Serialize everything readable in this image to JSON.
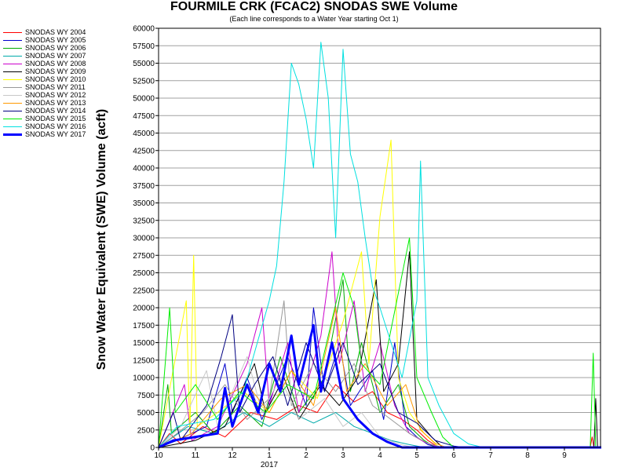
{
  "chart_data": {
    "type": "line",
    "title": "FOURMILE CRK (FCAC2) SNODAS SWE Volume",
    "subtitle": "(Each line corresponds to a Water Year starting Oct 1)",
    "ylabel": "Snow Water Equivalent (SWE) Volume (acft)",
    "xlabel": "",
    "year_label": "2017",
    "ylim": [
      0,
      60000
    ],
    "y_ticks": [
      "0",
      "2500",
      "5000",
      "7500",
      "10000",
      "12500",
      "15000",
      "17500",
      "20000",
      "22500",
      "25000",
      "27500",
      "30000",
      "32500",
      "35000",
      "37500",
      "40000",
      "42500",
      "45000",
      "47500",
      "50000",
      "52500",
      "55000",
      "57500",
      "60000"
    ],
    "x_ticks": [
      {
        "label": "10",
        "month": 0
      },
      {
        "label": "11",
        "month": 1
      },
      {
        "label": "12",
        "month": 2
      },
      {
        "label": "1",
        "month": 3
      },
      {
        "label": "2",
        "month": 4
      },
      {
        "label": "3",
        "month": 5
      },
      {
        "label": "4",
        "month": 6
      },
      {
        "label": "5",
        "month": 7
      },
      {
        "label": "6",
        "month": 8
      },
      {
        "label": "7",
        "month": 9
      },
      {
        "label": "8",
        "month": 10
      },
      {
        "label": "9",
        "month": 11
      }
    ],
    "grid": "horizontal",
    "legend_position": "left",
    "series": [
      {
        "name": "SNODAS WY 2004",
        "color": "#ff0000",
        "points": [
          [
            0,
            0
          ],
          [
            0.3,
            2000
          ],
          [
            0.6,
            500
          ],
          [
            1.2,
            3000
          ],
          [
            1.8,
            1500
          ],
          [
            2.5,
            5000
          ],
          [
            3.2,
            4000
          ],
          [
            3.8,
            6000
          ],
          [
            4.3,
            5000
          ],
          [
            4.8,
            9000
          ],
          [
            5.3,
            6500
          ],
          [
            5.8,
            8000
          ],
          [
            6.2,
            5000
          ],
          [
            6.6,
            4000
          ],
          [
            7.0,
            2500
          ],
          [
            7.3,
            1000
          ],
          [
            7.6,
            0
          ],
          [
            11.7,
            0
          ],
          [
            11.75,
            1500
          ],
          [
            11.8,
            0
          ],
          [
            12,
            0
          ]
        ]
      },
      {
        "name": "SNODAS WY 2005",
        "color": "#0000cc",
        "points": [
          [
            0,
            0
          ],
          [
            0.5,
            1000
          ],
          [
            1.3,
            3000
          ],
          [
            1.8,
            12000
          ],
          [
            2.0,
            5000
          ],
          [
            2.4,
            10000
          ],
          [
            2.8,
            4000
          ],
          [
            3.5,
            13000
          ],
          [
            4.0,
            6000
          ],
          [
            4.2,
            20000
          ],
          [
            4.5,
            8000
          ],
          [
            4.9,
            15000
          ],
          [
            5.2,
            6000
          ],
          [
            5.8,
            11000
          ],
          [
            6.1,
            4000
          ],
          [
            6.4,
            15000
          ],
          [
            6.7,
            3000
          ],
          [
            7.0,
            1500
          ],
          [
            7.3,
            400
          ],
          [
            7.6,
            0
          ],
          [
            12,
            0
          ]
        ]
      },
      {
        "name": "SNODAS WY 2006",
        "color": "#00aa00",
        "points": [
          [
            0,
            0
          ],
          [
            0.25,
            9000
          ],
          [
            0.35,
            2000
          ],
          [
            1.0,
            5000
          ],
          [
            1.5,
            2000
          ],
          [
            2.2,
            6000
          ],
          [
            2.8,
            3000
          ],
          [
            3.3,
            13000
          ],
          [
            3.8,
            5000
          ],
          [
            4.5,
            10000
          ],
          [
            5.0,
            24000
          ],
          [
            5.2,
            8000
          ],
          [
            5.5,
            15000
          ],
          [
            6.0,
            5000
          ],
          [
            6.5,
            9000
          ],
          [
            6.8,
            3000
          ],
          [
            7.2,
            1000
          ],
          [
            7.5,
            0
          ],
          [
            12,
            0
          ]
        ]
      },
      {
        "name": "SNODAS WY 2007",
        "color": "#00aaaa",
        "points": [
          [
            0,
            0
          ],
          [
            0.8,
            3000
          ],
          [
            1.5,
            2000
          ],
          [
            2.3,
            5000
          ],
          [
            3.0,
            3000
          ],
          [
            3.6,
            5000
          ],
          [
            4.2,
            3500
          ],
          [
            4.8,
            5000
          ],
          [
            5.3,
            3000
          ],
          [
            5.8,
            2000
          ],
          [
            6.3,
            1000
          ],
          [
            6.8,
            400
          ],
          [
            7.2,
            0
          ],
          [
            12,
            0
          ]
        ]
      },
      {
        "name": "SNODAS WY 2008",
        "color": "#cc00cc",
        "points": [
          [
            0,
            0
          ],
          [
            0.7,
            9000
          ],
          [
            0.9,
            1000
          ],
          [
            1.6,
            3000
          ],
          [
            2.4,
            12000
          ],
          [
            2.8,
            20000
          ],
          [
            3.0,
            6000
          ],
          [
            3.5,
            15000
          ],
          [
            3.8,
            5000
          ],
          [
            4.4,
            16000
          ],
          [
            4.7,
            28000
          ],
          [
            4.9,
            12000
          ],
          [
            5.3,
            21000
          ],
          [
            5.6,
            8000
          ],
          [
            6.0,
            15000
          ],
          [
            6.4,
            6000
          ],
          [
            6.8,
            2000
          ],
          [
            7.2,
            800
          ],
          [
            7.6,
            0
          ],
          [
            12,
            0
          ]
        ]
      },
      {
        "name": "SNODAS WY 2009",
        "color": "#000000",
        "points": [
          [
            0,
            0
          ],
          [
            1.0,
            1000
          ],
          [
            1.8,
            3000
          ],
          [
            2.6,
            12000
          ],
          [
            2.9,
            5000
          ],
          [
            3.4,
            10000
          ],
          [
            3.8,
            4000
          ],
          [
            4.4,
            9000
          ],
          [
            4.9,
            6000
          ],
          [
            5.4,
            10000
          ],
          [
            5.9,
            24000
          ],
          [
            6.1,
            8000
          ],
          [
            6.5,
            12000
          ],
          [
            6.8,
            28000
          ],
          [
            7.0,
            4000
          ],
          [
            7.4,
            1500
          ],
          [
            7.7,
            0
          ],
          [
            11.8,
            0
          ],
          [
            11.85,
            7000
          ],
          [
            11.9,
            0
          ],
          [
            12,
            0
          ]
        ]
      },
      {
        "name": "SNODAS WY 2010",
        "color": "#ffff00",
        "points": [
          [
            0,
            0
          ],
          [
            0.75,
            21000
          ],
          [
            0.85,
            2000
          ],
          [
            0.95,
            27500
          ],
          [
            1.05,
            3000
          ],
          [
            1.6,
            5000
          ],
          [
            2.3,
            8000
          ],
          [
            3.0,
            5000
          ],
          [
            3.6,
            11000
          ],
          [
            4.3,
            7000
          ],
          [
            5.0,
            18000
          ],
          [
            5.5,
            28000
          ],
          [
            5.7,
            12000
          ],
          [
            6.0,
            33000
          ],
          [
            6.3,
            44000
          ],
          [
            6.5,
            10000
          ],
          [
            6.8,
            5000
          ],
          [
            7.2,
            2000
          ],
          [
            7.6,
            0
          ],
          [
            12,
            0
          ]
        ]
      },
      {
        "name": "SNODAS WY 2011",
        "color": "#999999",
        "points": [
          [
            0,
            0
          ],
          [
            0.5,
            2000
          ],
          [
            1.2,
            5000
          ],
          [
            1.8,
            9000
          ],
          [
            2.4,
            4000
          ],
          [
            3.0,
            7000
          ],
          [
            3.4,
            21000
          ],
          [
            3.6,
            6000
          ],
          [
            4.2,
            12000
          ],
          [
            4.8,
            8000
          ],
          [
            5.3,
            12000
          ],
          [
            5.8,
            6000
          ],
          [
            6.3,
            4000
          ],
          [
            6.8,
            2000
          ],
          [
            7.3,
            600
          ],
          [
            7.7,
            0
          ],
          [
            12,
            0
          ]
        ]
      },
      {
        "name": "SNODAS WY 2012",
        "color": "#c8c8c8",
        "points": [
          [
            0,
            0
          ],
          [
            0.6,
            3000
          ],
          [
            1.3,
            11000
          ],
          [
            1.6,
            3000
          ],
          [
            2.4,
            13000
          ],
          [
            2.8,
            5000
          ],
          [
            3.3,
            10000
          ],
          [
            3.8,
            4000
          ],
          [
            4.5,
            7000
          ],
          [
            5.0,
            3000
          ],
          [
            5.5,
            5000
          ],
          [
            6.0,
            1500
          ],
          [
            6.5,
            500
          ],
          [
            6.9,
            0
          ],
          [
            12,
            0
          ]
        ]
      },
      {
        "name": "SNODAS WY 2013",
        "color": "#ff9900",
        "points": [
          [
            0,
            0
          ],
          [
            0.9,
            2000
          ],
          [
            1.7,
            7000
          ],
          [
            2.4,
            9000
          ],
          [
            3.0,
            5000
          ],
          [
            3.6,
            11000
          ],
          [
            4.2,
            6000
          ],
          [
            4.8,
            20000
          ],
          [
            5.1,
            8000
          ],
          [
            5.6,
            12000
          ],
          [
            6.2,
            6000
          ],
          [
            6.7,
            9000
          ],
          [
            7.1,
            2500
          ],
          [
            7.5,
            600
          ],
          [
            7.8,
            0
          ],
          [
            12,
            0
          ]
        ]
      },
      {
        "name": "SNODAS WY 2014",
        "color": "#000080",
        "points": [
          [
            0,
            0
          ],
          [
            0.4,
            5000
          ],
          [
            0.6,
            1000
          ],
          [
            1.3,
            6000
          ],
          [
            1.7,
            13000
          ],
          [
            2.0,
            19000
          ],
          [
            2.2,
            5000
          ],
          [
            2.6,
            9000
          ],
          [
            3.1,
            13000
          ],
          [
            3.5,
            6000
          ],
          [
            4.0,
            15000
          ],
          [
            4.5,
            8000
          ],
          [
            5.0,
            15000
          ],
          [
            5.4,
            9000
          ],
          [
            6.0,
            12000
          ],
          [
            6.5,
            5000
          ],
          [
            7.0,
            3500
          ],
          [
            7.5,
            1000
          ],
          [
            8.0,
            200
          ],
          [
            8.3,
            0
          ],
          [
            12,
            0
          ]
        ]
      },
      {
        "name": "SNODAS WY 2015",
        "color": "#00ee00",
        "points": [
          [
            0,
            0
          ],
          [
            0.3,
            20000
          ],
          [
            0.45,
            5000
          ],
          [
            1.0,
            9000
          ],
          [
            1.6,
            4000
          ],
          [
            2.2,
            8000
          ],
          [
            2.9,
            5000
          ],
          [
            3.5,
            9000
          ],
          [
            4.2,
            7000
          ],
          [
            5.0,
            25000
          ],
          [
            5.3,
            20000
          ],
          [
            5.5,
            12000
          ],
          [
            6.0,
            9000
          ],
          [
            6.8,
            30000
          ],
          [
            7.0,
            10000
          ],
          [
            7.4,
            5000
          ],
          [
            7.7,
            1500
          ],
          [
            8.0,
            0
          ],
          [
            11.7,
            0
          ],
          [
            11.78,
            13500
          ],
          [
            11.85,
            0
          ],
          [
            12,
            0
          ]
        ]
      },
      {
        "name": "SNODAS WY 2016",
        "color": "#00e0e0",
        "points": [
          [
            0,
            0
          ],
          [
            0.5,
            3000
          ],
          [
            1.5,
            4000
          ],
          [
            2.3,
            8000
          ],
          [
            3.0,
            21000
          ],
          [
            3.2,
            26000
          ],
          [
            3.4,
            38000
          ],
          [
            3.6,
            55000
          ],
          [
            3.8,
            52000
          ],
          [
            4.0,
            47000
          ],
          [
            4.2,
            40000
          ],
          [
            4.4,
            58000
          ],
          [
            4.6,
            50000
          ],
          [
            4.8,
            30000
          ],
          [
            5.0,
            57000
          ],
          [
            5.2,
            42000
          ],
          [
            5.4,
            38000
          ],
          [
            5.6,
            30000
          ],
          [
            5.8,
            23000
          ],
          [
            6.0,
            20000
          ],
          [
            6.3,
            15000
          ],
          [
            6.6,
            10000
          ],
          [
            7.0,
            21000
          ],
          [
            7.1,
            41000
          ],
          [
            7.3,
            10000
          ],
          [
            7.6,
            6000
          ],
          [
            8.0,
            2000
          ],
          [
            8.4,
            500
          ],
          [
            8.8,
            0
          ],
          [
            12,
            0
          ]
        ]
      },
      {
        "name": "SNODAS WY 2017",
        "color": "#0000ff",
        "bold": true,
        "points": [
          [
            0,
            0
          ],
          [
            0.4,
            1000
          ],
          [
            1.0,
            1500
          ],
          [
            1.6,
            2000
          ],
          [
            1.8,
            8500
          ],
          [
            2.0,
            3000
          ],
          [
            2.4,
            9000
          ],
          [
            2.7,
            5000
          ],
          [
            3.0,
            12000
          ],
          [
            3.3,
            8000
          ],
          [
            3.6,
            16000
          ],
          [
            3.8,
            9000
          ],
          [
            4.2,
            17500
          ],
          [
            4.4,
            8000
          ],
          [
            4.7,
            15000
          ],
          [
            5.0,
            7000
          ],
          [
            5.4,
            4000
          ],
          [
            5.8,
            2000
          ],
          [
            6.2,
            800
          ],
          [
            6.6,
            0
          ],
          [
            12,
            0
          ]
        ]
      }
    ]
  }
}
